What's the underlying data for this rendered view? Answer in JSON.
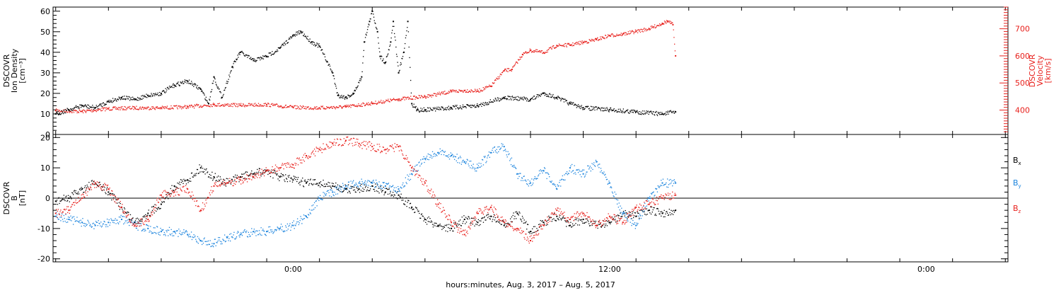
{
  "colors": {
    "black": "#000000",
    "red": "#e8211d",
    "blue": "#1a83dd"
  },
  "xaxis": {
    "label": "hours:minutes, Aug.  3, 2017 – Aug.  5, 2017",
    "range_hours": [
      -9.1,
      27.1
    ],
    "ticks": [
      {
        "hours": 0,
        "label": "0:00"
      },
      {
        "hours": 12,
        "label": "12:00"
      },
      {
        "hours": 24,
        "label": "0:00"
      }
    ],
    "minor_step_hours": 2
  },
  "chart_data": [
    {
      "type": "scatter",
      "panel": "top",
      "ylabel": "DSCOVR\nIon Density\n[cm⁻³]",
      "ylim": [
        0,
        62
      ],
      "yticks": [
        0,
        10,
        20,
        30,
        40,
        50,
        60
      ],
      "y2label": "DSCOVR\nVelocity\n[km/s]",
      "y2lim": [
        310,
        780
      ],
      "y2ticks": [
        400,
        500,
        600,
        700
      ],
      "series": [
        {
          "axis": "left",
          "color": "black",
          "x": [
            -9.0,
            -8.5,
            -8.0,
            -7.5,
            -7.0,
            -6.5,
            -6.0,
            -5.5,
            -5.0,
            -4.5,
            -4.0,
            -3.5,
            -3.2,
            -3.0,
            -2.7,
            -2.3,
            -2.0,
            -1.5,
            -1.0,
            -0.5,
            0.0,
            0.3,
            0.7,
            1.0,
            1.5,
            1.7,
            2.0,
            2.3,
            2.6,
            2.7,
            2.9,
            3.0,
            3.2,
            3.3,
            3.5,
            3.7,
            3.8,
            4.0,
            4.2,
            4.35,
            4.5,
            4.7,
            5.0,
            6.0,
            7.0,
            8.0,
            9.0,
            9.5,
            10.0,
            10.5,
            11.0,
            12.0,
            13.0,
            14.0,
            14.5
          ],
          "y": [
            10,
            12,
            14,
            13,
            16,
            18,
            17,
            19,
            20,
            24,
            26,
            22,
            15,
            28,
            18,
            33,
            40,
            36,
            38,
            42,
            48,
            50,
            45,
            43,
            30,
            19,
            18,
            20,
            28,
            45,
            55,
            60,
            50,
            38,
            35,
            45,
            55,
            30,
            40,
            55,
            15,
            12,
            12,
            13,
            14,
            18,
            17,
            20,
            18,
            15,
            13,
            12,
            11,
            10,
            11
          ]
        },
        {
          "axis": "right",
          "color": "red",
          "x": [
            -9.0,
            -8.0,
            -7.0,
            -6.0,
            -5.0,
            -4.0,
            -3.0,
            -2.0,
            -1.0,
            0.0,
            1.0,
            2.0,
            3.0,
            4.0,
            5.0,
            6.0,
            6.5,
            7.0,
            7.5,
            8.0,
            8.3,
            8.7,
            9.0,
            9.5,
            10.0,
            10.5,
            11.0,
            11.5,
            12.0,
            12.5,
            13.0,
            13.5,
            14.0,
            14.2,
            14.4,
            14.5
          ],
          "y": [
            398,
            395,
            405,
            408,
            408,
            412,
            420,
            418,
            420,
            410,
            408,
            412,
            425,
            440,
            450,
            468,
            472,
            470,
            488,
            545,
            550,
            605,
            620,
            612,
            638,
            640,
            650,
            660,
            675,
            680,
            690,
            700,
            720,
            728,
            715,
            600
          ]
        }
      ]
    },
    {
      "type": "scatter",
      "panel": "bottom",
      "ylabel": "DSCOVR\nB\n[nT]",
      "ylim": [
        -21,
        21
      ],
      "yticks": [
        -20,
        -10,
        0,
        10,
        20
      ],
      "zero_line": true,
      "legend": "right",
      "series": [
        {
          "name": "Bx",
          "label_main": "B",
          "label_sub": "x",
          "color": "black",
          "x": [
            -9.0,
            -8.5,
            -8.0,
            -7.5,
            -7.0,
            -6.5,
            -6.0,
            -5.5,
            -5.0,
            -4.5,
            -4.0,
            -3.5,
            -3.0,
            -2.5,
            -2.0,
            -1.5,
            -1.0,
            -0.5,
            0.0,
            0.5,
            1.0,
            1.5,
            2.0,
            2.5,
            3.0,
            3.5,
            4.0,
            4.5,
            5.0,
            5.5,
            6.0,
            6.5,
            7.0,
            7.5,
            8.0,
            8.5,
            9.0,
            9.5,
            10.0,
            10.5,
            11.0,
            11.5,
            12.0,
            12.5,
            13.0,
            13.5,
            14.0,
            14.5
          ],
          "y": [
            -1,
            0,
            3,
            5,
            2,
            -3,
            -8,
            -5,
            -2,
            4,
            6,
            10,
            7,
            5,
            7,
            8,
            9,
            7,
            6,
            5,
            5,
            4,
            3,
            3,
            4,
            2,
            1,
            -3,
            -7,
            -9,
            -10,
            -7,
            -8,
            -6,
            -9,
            -5,
            -11,
            -8,
            -6,
            -9,
            -7,
            -9,
            -8,
            -5,
            -6,
            -4,
            -5,
            -4
          ]
        },
        {
          "name": "By",
          "label_main": "B",
          "label_sub": "y",
          "color": "blue",
          "x": [
            -9.0,
            -8.5,
            -8.0,
            -7.5,
            -7.0,
            -6.5,
            -6.0,
            -5.5,
            -5.0,
            -4.5,
            -4.0,
            -3.5,
            -3.0,
            -2.5,
            -2.0,
            -1.5,
            -1.0,
            -0.5,
            0.0,
            0.5,
            1.0,
            1.5,
            2.0,
            2.5,
            3.0,
            3.5,
            4.0,
            4.5,
            5.0,
            5.5,
            6.0,
            6.5,
            7.0,
            7.5,
            8.0,
            8.5,
            9.0,
            9.5,
            10.0,
            10.5,
            11.0,
            11.5,
            12.0,
            12.5,
            13.0,
            13.5,
            14.0,
            14.5
          ],
          "y": [
            -6,
            -7,
            -8,
            -9,
            -8,
            -7,
            -9,
            -10,
            -11,
            -11,
            -12,
            -14,
            -15,
            -13,
            -12,
            -11,
            -11,
            -10,
            -9,
            -6,
            0,
            2,
            4,
            5,
            5,
            4,
            3,
            8,
            13,
            15,
            14,
            12,
            10,
            15,
            17,
            8,
            5,
            9,
            3,
            10,
            8,
            12,
            5,
            -5,
            -9,
            0,
            5,
            5
          ]
        },
        {
          "name": "Bz",
          "label_main": "B",
          "label_sub": "z",
          "color": "red",
          "x": [
            -9.0,
            -8.5,
            -8.0,
            -7.5,
            -7.0,
            -6.5,
            -6.0,
            -5.5,
            -5.0,
            -4.5,
            -4.0,
            -3.5,
            -3.0,
            -2.5,
            -2.0,
            -1.5,
            -1.0,
            -0.5,
            0.0,
            0.5,
            1.0,
            1.5,
            2.0,
            2.5,
            3.0,
            3.5,
            4.0,
            4.5,
            5.0,
            5.5,
            6.0,
            6.5,
            7.0,
            7.5,
            8.0,
            8.5,
            9.0,
            9.5,
            10.0,
            10.5,
            11.0,
            11.5,
            12.0,
            12.5,
            13.0,
            13.5,
            14.0,
            14.5
          ],
          "y": [
            -5,
            -4,
            0,
            5,
            3,
            -3,
            -9,
            -7,
            1,
            2,
            3,
            -4,
            4,
            5,
            6,
            7,
            9,
            10,
            11,
            14,
            16,
            18,
            19,
            18,
            17,
            16,
            17,
            10,
            5,
            -2,
            -8,
            -12,
            -5,
            -3,
            -8,
            -10,
            -14,
            -9,
            -4,
            -7,
            -5,
            -9,
            -6,
            -8,
            -3,
            -2,
            0,
            1
          ]
        }
      ]
    }
  ]
}
